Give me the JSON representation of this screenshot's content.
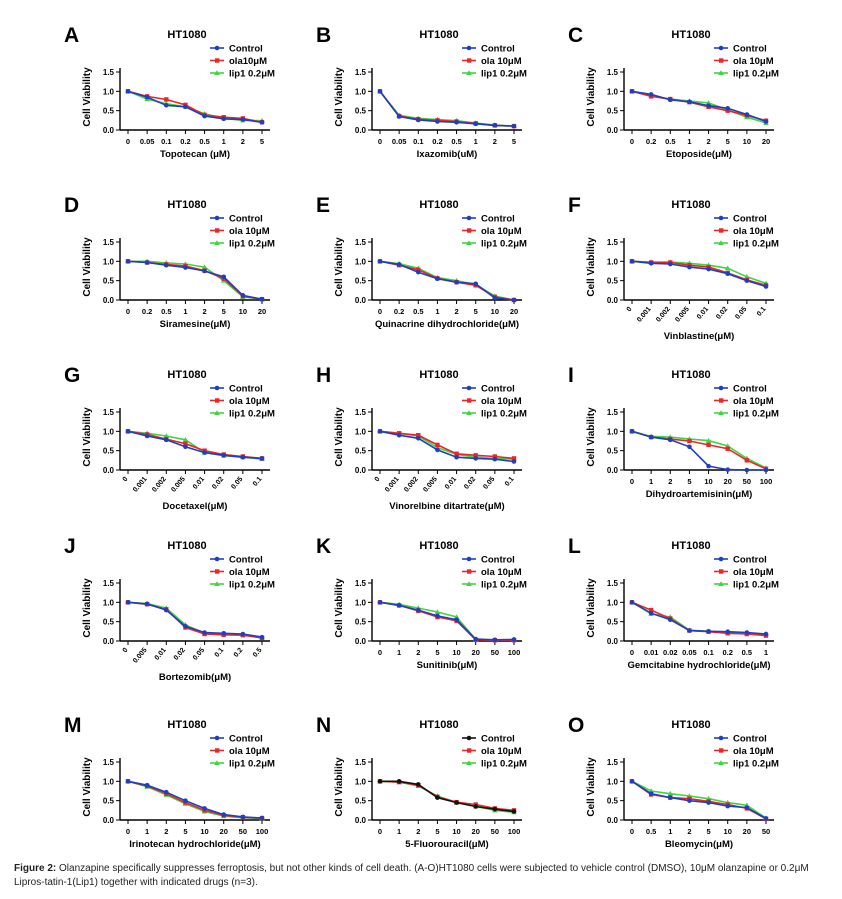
{
  "caption": {
    "label": "Figure 2:",
    "text": "Olanzapine specifically suppresses ferroptosis, but not other kinds of cell death.  (A-O)HT1080 cells were subjected to vehicle control (DMSO), 10μM olanzapine or 0.2μM Lipros-tatin-1(Lip1) together with indicated drugs (n=3)."
  },
  "colors": {
    "Control": "#1f3fbf",
    "ola": "#e8262b",
    "lip1": "#3fd63f",
    "Control_N": "#111111"
  },
  "chart_data": [
    {
      "type": "line",
      "panel": "A",
      "title": "HT1080",
      "xlabel": "Topotecan (μM)",
      "ylabel": "Cell Viability",
      "ylim": [
        0,
        1.5
      ],
      "yticks": [
        "0.0",
        "0.5",
        "1.0",
        "1.5"
      ],
      "legend": "top-right",
      "categories": [
        "0",
        "0.05",
        "0.1",
        "0.2",
        "0.5",
        "1",
        "2",
        "5"
      ],
      "series": [
        {
          "name": "Control",
          "values": [
            1.0,
            0.85,
            0.64,
            0.6,
            0.36,
            0.29,
            0.27,
            0.2
          ]
        },
        {
          "name": "ola10μM",
          "values": [
            1.0,
            0.87,
            0.79,
            0.65,
            0.39,
            0.33,
            0.3,
            0.2
          ]
        },
        {
          "name": "lip1 0.2μM",
          "values": [
            1.0,
            0.8,
            0.68,
            0.6,
            0.42,
            0.3,
            0.25,
            0.24
          ]
        }
      ]
    },
    {
      "type": "line",
      "panel": "B",
      "title": "HT1080",
      "xlabel": "Ixazomib(uM)",
      "ylabel": "Cell Viability",
      "ylim": [
        0,
        1.5
      ],
      "yticks": [
        "0.0",
        "0.5",
        "1.0",
        "1.5"
      ],
      "legend": "top-right",
      "categories": [
        "0",
        "0.05",
        "0.1",
        "0.2",
        "0.5",
        "1",
        "2",
        "5"
      ],
      "series": [
        {
          "name": "Control",
          "values": [
            1.0,
            0.35,
            0.26,
            0.22,
            0.2,
            0.16,
            0.12,
            0.1
          ]
        },
        {
          "name": "ola 10μM",
          "values": [
            1.0,
            0.36,
            0.28,
            0.25,
            0.22,
            0.17,
            0.12,
            0.1
          ]
        },
        {
          "name": "lip1 0.2μM",
          "values": [
            1.0,
            0.38,
            0.3,
            0.27,
            0.24,
            0.18,
            0.13,
            0.1
          ]
        }
      ]
    },
    {
      "type": "line",
      "panel": "C",
      "title": "HT1080",
      "xlabel": "Etoposide(μM)",
      "ylabel": "Cell Viability",
      "ylim": [
        0,
        1.5
      ],
      "yticks": [
        "0.0",
        "0.5",
        "1.0",
        "1.5"
      ],
      "legend": "top-right",
      "categories": [
        "0",
        "0.2",
        "0.5",
        "1",
        "2",
        "5",
        "10",
        "20"
      ],
      "series": [
        {
          "name": "Control",
          "values": [
            1.0,
            0.92,
            0.78,
            0.73,
            0.63,
            0.56,
            0.4,
            0.22
          ]
        },
        {
          "name": "ola 10μM",
          "values": [
            1.0,
            0.87,
            0.8,
            0.72,
            0.6,
            0.5,
            0.38,
            0.24
          ]
        },
        {
          "name": "lip1 0.2μM",
          "values": [
            1.0,
            0.88,
            0.8,
            0.75,
            0.7,
            0.52,
            0.33,
            0.18
          ]
        }
      ]
    },
    {
      "type": "line",
      "panel": "D",
      "title": "HT1080",
      "xlabel": "Siramesine(μM)",
      "ylabel": "Cell Viability",
      "ylim": [
        0,
        1.5
      ],
      "yticks": [
        "0.0",
        "0.5",
        "1.0",
        "1.5"
      ],
      "legend": "top-right",
      "categories": [
        "0",
        "0.2",
        "0.5",
        "1",
        "2",
        "5",
        "10",
        "20"
      ],
      "series": [
        {
          "name": "Control",
          "values": [
            1.0,
            0.97,
            0.9,
            0.84,
            0.75,
            0.6,
            0.12,
            0.02
          ]
        },
        {
          "name": "ola 10μM",
          "values": [
            1.0,
            0.97,
            0.92,
            0.88,
            0.76,
            0.55,
            0.1,
            0.02
          ]
        },
        {
          "name": "lip1 0.2μM",
          "values": [
            1.0,
            1.0,
            0.96,
            0.93,
            0.85,
            0.5,
            0.08,
            0.02
          ]
        }
      ]
    },
    {
      "type": "line",
      "panel": "E",
      "title": "HT1080",
      "xlabel": "Quinacrine dihydrochloride(μM)",
      "ylabel": "Cell Viability",
      "ylim": [
        0,
        1.5
      ],
      "yticks": [
        "0.0",
        "0.5",
        "1.0",
        "1.5"
      ],
      "legend": "top-right",
      "categories": [
        "0",
        "0.2",
        "0.5",
        "1",
        "2",
        "5",
        "10",
        "20"
      ],
      "series": [
        {
          "name": "Control",
          "values": [
            1.0,
            0.92,
            0.72,
            0.55,
            0.46,
            0.42,
            0.05,
            0.0
          ]
        },
        {
          "name": "ola 10μM",
          "values": [
            1.0,
            0.9,
            0.78,
            0.56,
            0.46,
            0.38,
            0.08,
            0.0
          ]
        },
        {
          "name": "lip1 0.2μM",
          "values": [
            1.0,
            0.94,
            0.82,
            0.58,
            0.5,
            0.4,
            0.1,
            0.0
          ]
        }
      ]
    },
    {
      "type": "line",
      "panel": "F",
      "title": "HT1080",
      "xlabel": "Vinblastine(μM)",
      "ylabel": "Cell Viability",
      "ylim": [
        0,
        1.5
      ],
      "yticks": [
        "0.0",
        "0.5",
        "1.0",
        "1.5"
      ],
      "legend": "top-right",
      "categories": [
        "0",
        "0.001",
        "0.002",
        "0.005",
        "0.01",
        "0.02",
        "0.05",
        "0.1"
      ],
      "series": [
        {
          "name": "Control",
          "values": [
            1.0,
            0.95,
            0.93,
            0.85,
            0.8,
            0.68,
            0.5,
            0.35
          ]
        },
        {
          "name": "ola 10μM",
          "values": [
            1.0,
            0.97,
            0.97,
            0.9,
            0.85,
            0.7,
            0.52,
            0.38
          ]
        },
        {
          "name": "lip1 0.2μM",
          "values": [
            1.0,
            0.98,
            0.98,
            0.95,
            0.9,
            0.82,
            0.6,
            0.43
          ]
        }
      ]
    },
    {
      "type": "line",
      "panel": "G",
      "title": "HT1080",
      "xlabel": "Docetaxel(μM)",
      "ylabel": "Cell Viability",
      "ylim": [
        0,
        1.5
      ],
      "yticks": [
        "0.0",
        "0.5",
        "1.0",
        "1.5"
      ],
      "legend": "top-right",
      "categories": [
        "0",
        "0.001",
        "0.002",
        "0.005",
        "0.01",
        "0.02",
        "0.05",
        "0.1"
      ],
      "series": [
        {
          "name": "Control",
          "values": [
            1.0,
            0.88,
            0.78,
            0.6,
            0.45,
            0.38,
            0.33,
            0.3
          ]
        },
        {
          "name": "ola 10μM",
          "values": [
            1.0,
            0.92,
            0.8,
            0.68,
            0.5,
            0.4,
            0.35,
            0.3
          ]
        },
        {
          "name": "lip1 0.2μM",
          "values": [
            1.0,
            0.95,
            0.88,
            0.78,
            0.45,
            0.37,
            0.33,
            0.28
          ]
        }
      ]
    },
    {
      "type": "line",
      "panel": "H",
      "title": "HT1080",
      "xlabel": "Vinorelbine ditartrate(μM)",
      "ylabel": "Cell Viability",
      "ylim": [
        0,
        1.5
      ],
      "yticks": [
        "0.0",
        "0.5",
        "1.0",
        "1.5"
      ],
      "legend": "top-right",
      "categories": [
        "0",
        "0.001",
        "0.002",
        "0.005",
        "0.01",
        "0.02",
        "0.05",
        "0.1"
      ],
      "series": [
        {
          "name": "Control",
          "values": [
            1.0,
            0.9,
            0.82,
            0.52,
            0.33,
            0.3,
            0.28,
            0.22
          ]
        },
        {
          "name": "ola 10μM",
          "values": [
            1.0,
            0.95,
            0.9,
            0.65,
            0.42,
            0.38,
            0.35,
            0.3
          ]
        },
        {
          "name": "lip1 0.2μM",
          "values": [
            1.0,
            0.95,
            0.88,
            0.58,
            0.4,
            0.33,
            0.3,
            0.28
          ]
        }
      ]
    },
    {
      "type": "line",
      "panel": "I",
      "title": "HT1080",
      "xlabel": "Dihydroartemisinin(μM)",
      "ylabel": "Cell Viability",
      "ylim": [
        0,
        1.5
      ],
      "yticks": [
        "0.0",
        "0.5",
        "1.0",
        "1.5"
      ],
      "legend": "top-right",
      "categories": [
        "0",
        "1",
        "2",
        "5",
        "10",
        "20",
        "50",
        "100"
      ],
      "series": [
        {
          "name": "Control",
          "values": [
            1.0,
            0.85,
            0.78,
            0.6,
            0.1,
            0.01,
            0.0,
            0.0
          ]
        },
        {
          "name": "ola 10μM",
          "values": [
            1.0,
            0.85,
            0.8,
            0.75,
            0.65,
            0.55,
            0.25,
            0.03
          ]
        },
        {
          "name": "lip1 0.2μM",
          "values": [
            1.0,
            0.87,
            0.85,
            0.8,
            0.76,
            0.62,
            0.3,
            0.05
          ]
        }
      ]
    },
    {
      "type": "line",
      "panel": "J",
      "title": "HT1080",
      "xlabel": "Bortezomib(μM)",
      "ylabel": "Cell Viability",
      "ylim": [
        0,
        1.5
      ],
      "yticks": [
        "0.0",
        "0.5",
        "1.0",
        "1.5"
      ],
      "legend": "top-right",
      "categories": [
        "0",
        "0.005",
        "0.01",
        "0.02",
        "0.05",
        "0.1",
        "0.2",
        "0.5"
      ],
      "series": [
        {
          "name": "Control",
          "values": [
            1.0,
            0.96,
            0.8,
            0.38,
            0.22,
            0.2,
            0.18,
            0.1
          ]
        },
        {
          "name": "ola 10μM",
          "values": [
            1.0,
            0.95,
            0.82,
            0.35,
            0.18,
            0.16,
            0.15,
            0.08
          ]
        },
        {
          "name": "lip1 0.2μM",
          "values": [
            1.0,
            0.97,
            0.85,
            0.42,
            0.2,
            0.18,
            0.16,
            0.1
          ]
        }
      ]
    },
    {
      "type": "line",
      "panel": "K",
      "title": "HT1080",
      "xlabel": "Sunitinib(μM)",
      "ylabel": "Cell Viability",
      "ylim": [
        0,
        1.5
      ],
      "yticks": [
        "0.0",
        "0.5",
        "1.0",
        "1.5"
      ],
      "legend": "top-right",
      "categories": [
        "0",
        "1",
        "2",
        "5",
        "10",
        "20",
        "50",
        "100"
      ],
      "series": [
        {
          "name": "Control",
          "values": [
            1.0,
            0.92,
            0.8,
            0.65,
            0.55,
            0.05,
            0.03,
            0.04
          ]
        },
        {
          "name": "ola 10μM",
          "values": [
            1.0,
            0.92,
            0.78,
            0.62,
            0.52,
            0.03,
            0.02,
            0.02
          ]
        },
        {
          "name": "lip1 0.2μM",
          "values": [
            1.0,
            0.95,
            0.85,
            0.75,
            0.62,
            0.04,
            0.02,
            0.03
          ]
        }
      ]
    },
    {
      "type": "line",
      "panel": "L",
      "title": "HT1080",
      "xlabel": "Gemcitabine hydrochloride(μM)",
      "ylabel": "Cell Viability",
      "ylim": [
        0,
        1.5
      ],
      "yticks": [
        "0.0",
        "0.5",
        "1.0",
        "1.5"
      ],
      "legend": "top-right",
      "categories": [
        "0",
        "0.01",
        "0.02",
        "0.05",
        "0.1",
        "0.2",
        "0.5",
        "1"
      ],
      "series": [
        {
          "name": "Control",
          "values": [
            1.0,
            0.72,
            0.55,
            0.27,
            0.25,
            0.24,
            0.22,
            0.18
          ]
        },
        {
          "name": "ola 10μM",
          "values": [
            1.0,
            0.8,
            0.58,
            0.27,
            0.24,
            0.2,
            0.18,
            0.14
          ]
        },
        {
          "name": "lip1 0.2μM",
          "values": [
            1.0,
            0.7,
            0.62,
            0.28,
            0.25,
            0.22,
            0.2,
            0.18
          ]
        }
      ]
    },
    {
      "type": "line",
      "panel": "M",
      "title": "HT1080",
      "xlabel": "Irinotecan hydrochloride(μM)",
      "ylabel": "Cell Viability",
      "ylim": [
        0,
        1.5
      ],
      "yticks": [
        "0.0",
        "0.5",
        "1.0",
        "1.5"
      ],
      "legend": "top-right",
      "categories": [
        "0",
        "1",
        "2",
        "5",
        "10",
        "20",
        "50",
        "100"
      ],
      "series": [
        {
          "name": "Control",
          "values": [
            1.0,
            0.9,
            0.72,
            0.5,
            0.3,
            0.14,
            0.08,
            0.05
          ]
        },
        {
          "name": "ola 10μM",
          "values": [
            1.0,
            0.88,
            0.68,
            0.45,
            0.25,
            0.12,
            0.07,
            0.05
          ]
        },
        {
          "name": "lip1 0.2μM",
          "values": [
            1.0,
            0.86,
            0.65,
            0.42,
            0.22,
            0.1,
            0.06,
            0.04
          ]
        }
      ]
    },
    {
      "type": "line",
      "panel": "N",
      "title": "HT1080",
      "xlabel": "5-Fluorouracil(μM)",
      "ylabel": "Cell Viability",
      "ylim": [
        0,
        1.5
      ],
      "yticks": [
        "0.0",
        "0.5",
        "1.0",
        "1.5"
      ],
      "legend": "top-right",
      "categories": [
        "0",
        "1",
        "2",
        "5",
        "10",
        "20",
        "50",
        "100"
      ],
      "series": [
        {
          "name": "Control",
          "values": [
            1.0,
            1.0,
            0.92,
            0.58,
            0.45,
            0.35,
            0.28,
            0.22
          ]
        },
        {
          "name": "ola 10μM",
          "values": [
            1.0,
            0.98,
            0.9,
            0.6,
            0.46,
            0.4,
            0.3,
            0.25
          ]
        },
        {
          "name": "lip1 0.2μM",
          "values": [
            1.0,
            0.98,
            0.88,
            0.62,
            0.45,
            0.35,
            0.25,
            0.2
          ]
        }
      ]
    },
    {
      "type": "line",
      "panel": "O",
      "title": "HT1080",
      "xlabel": "Bleomycin(μM)",
      "ylabel": "Cell Viability",
      "ylim": [
        0,
        1.5
      ],
      "yticks": [
        "0.0",
        "0.5",
        "1.0",
        "1.5"
      ],
      "legend": "top-right",
      "categories": [
        "0",
        "0.5",
        "1",
        "2",
        "5",
        "10",
        "20",
        "50"
      ],
      "series": [
        {
          "name": "Control",
          "values": [
            1.0,
            0.68,
            0.58,
            0.5,
            0.45,
            0.36,
            0.32,
            0.04
          ]
        },
        {
          "name": "ola 10μM",
          "values": [
            1.0,
            0.66,
            0.58,
            0.55,
            0.48,
            0.4,
            0.3,
            0.03
          ]
        },
        {
          "name": "lip1 0.2μM",
          "values": [
            1.0,
            0.75,
            0.68,
            0.62,
            0.55,
            0.45,
            0.38,
            0.05
          ]
        }
      ]
    }
  ]
}
